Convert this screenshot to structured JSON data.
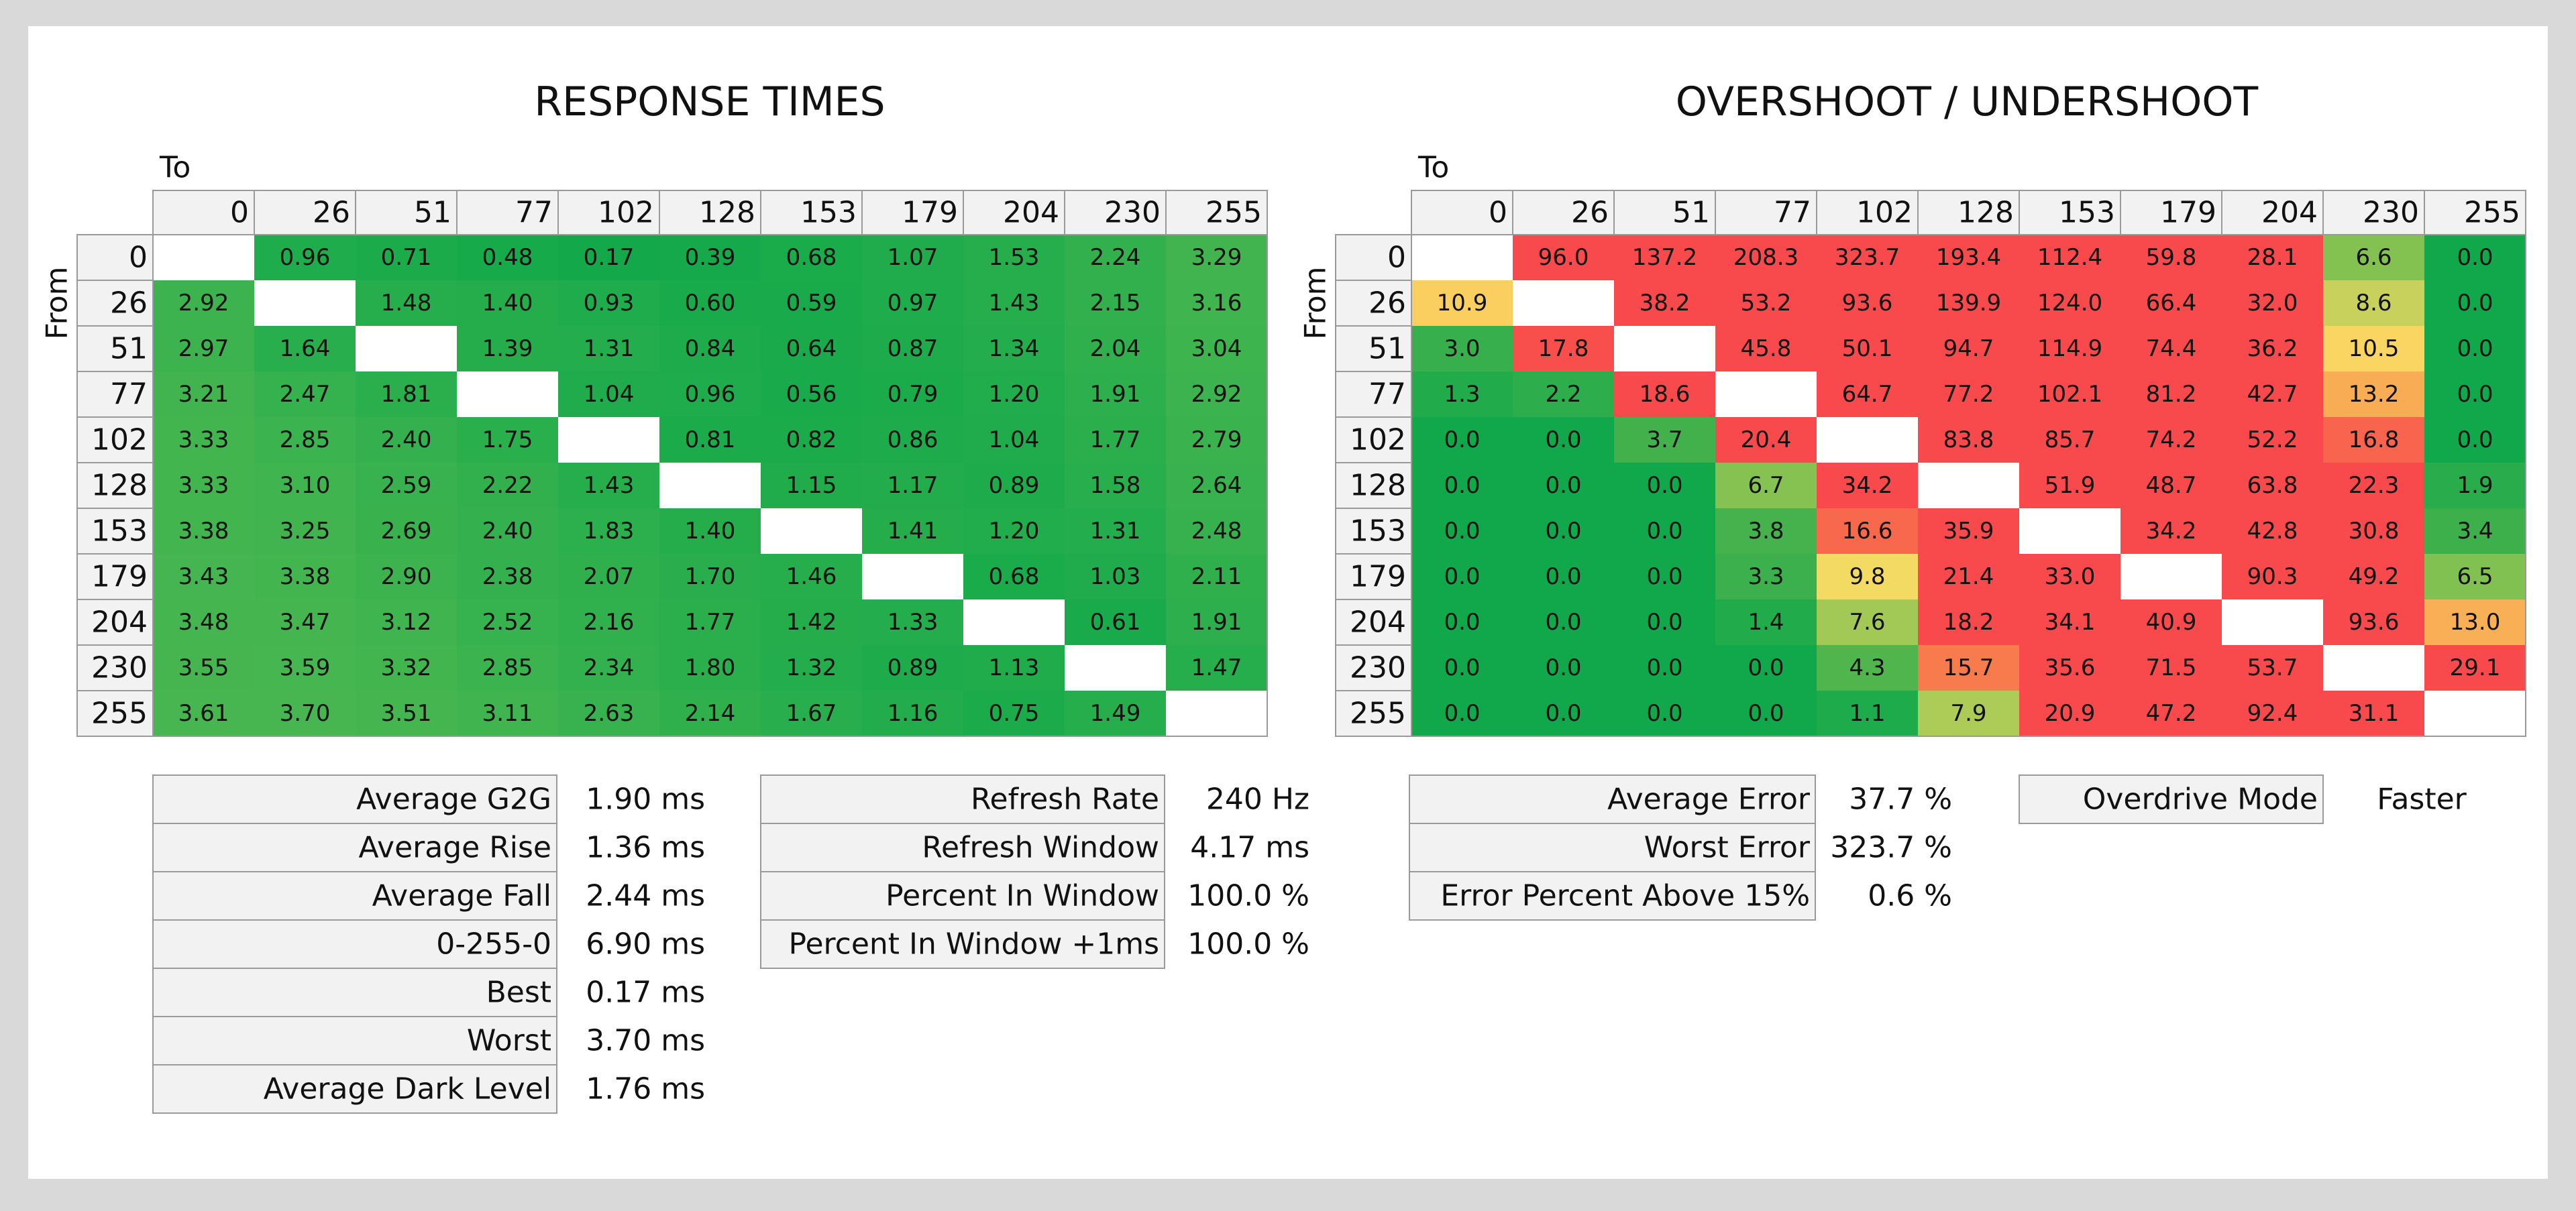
{
  "response_times": {
    "title": "RESPONSE TIMES",
    "to_label": "To",
    "from_label": "From",
    "columns": [
      "0",
      "26",
      "51",
      "77",
      "102",
      "128",
      "153",
      "179",
      "204",
      "230",
      "255"
    ],
    "row_labels": [
      "0",
      "26",
      "51",
      "77",
      "102",
      "128",
      "153",
      "179",
      "204",
      "230",
      "255"
    ],
    "rows": [
      [
        null,
        "0.96",
        "0.71",
        "0.48",
        "0.17",
        "0.39",
        "0.68",
        "1.07",
        "1.53",
        "2.24",
        "3.29"
      ],
      [
        "2.92",
        null,
        "1.48",
        "1.40",
        "0.93",
        "0.60",
        "0.59",
        "0.97",
        "1.43",
        "2.15",
        "3.16"
      ],
      [
        "2.97",
        "1.64",
        null,
        "1.39",
        "1.31",
        "0.84",
        "0.64",
        "0.87",
        "1.34",
        "2.04",
        "3.04"
      ],
      [
        "3.21",
        "2.47",
        "1.81",
        null,
        "1.04",
        "0.96",
        "0.56",
        "0.79",
        "1.20",
        "1.91",
        "2.92"
      ],
      [
        "3.33",
        "2.85",
        "2.40",
        "1.75",
        null,
        "0.81",
        "0.82",
        "0.86",
        "1.04",
        "1.77",
        "2.79"
      ],
      [
        "3.33",
        "3.10",
        "2.59",
        "2.22",
        "1.43",
        null,
        "1.15",
        "1.17",
        "0.89",
        "1.58",
        "2.64"
      ],
      [
        "3.38",
        "3.25",
        "2.69",
        "2.40",
        "1.83",
        "1.40",
        null,
        "1.41",
        "1.20",
        "1.31",
        "2.48"
      ],
      [
        "3.43",
        "3.38",
        "2.90",
        "2.38",
        "2.07",
        "1.70",
        "1.46",
        null,
        "0.68",
        "1.03",
        "2.11"
      ],
      [
        "3.48",
        "3.47",
        "3.12",
        "2.52",
        "2.16",
        "1.77",
        "1.42",
        "1.33",
        null,
        "0.61",
        "1.91"
      ],
      [
        "3.55",
        "3.59",
        "3.32",
        "2.85",
        "2.34",
        "1.80",
        "1.32",
        "0.89",
        "1.13",
        null,
        "1.47"
      ],
      [
        "3.61",
        "3.70",
        "3.51",
        "3.11",
        "2.63",
        "2.14",
        "1.67",
        "1.16",
        "0.75",
        "1.49",
        null
      ]
    ]
  },
  "overshoot": {
    "title": "OVERSHOOT / UNDERSHOOT",
    "to_label": "To",
    "from_label": "From",
    "columns": [
      "0",
      "26",
      "51",
      "77",
      "102",
      "128",
      "153",
      "179",
      "204",
      "230",
      "255"
    ],
    "row_labels": [
      "0",
      "26",
      "51",
      "77",
      "102",
      "128",
      "153",
      "179",
      "204",
      "230",
      "255"
    ],
    "rows": [
      [
        null,
        "96.0",
        "137.2",
        "208.3",
        "323.7",
        "193.4",
        "112.4",
        "59.8",
        "28.1",
        "6.6",
        "0.0"
      ],
      [
        "10.9",
        null,
        "38.2",
        "53.2",
        "93.6",
        "139.9",
        "124.0",
        "66.4",
        "32.0",
        "8.6",
        "0.0"
      ],
      [
        "3.0",
        "17.8",
        null,
        "45.8",
        "50.1",
        "94.7",
        "114.9",
        "74.4",
        "36.2",
        "10.5",
        "0.0"
      ],
      [
        "1.3",
        "2.2",
        "18.6",
        null,
        "64.7",
        "77.2",
        "102.1",
        "81.2",
        "42.7",
        "13.2",
        "0.0"
      ],
      [
        "0.0",
        "0.0",
        "3.7",
        "20.4",
        null,
        "83.8",
        "85.7",
        "74.2",
        "52.2",
        "16.8",
        "0.0"
      ],
      [
        "0.0",
        "0.0",
        "0.0",
        "6.7",
        "34.2",
        null,
        "51.9",
        "48.7",
        "63.8",
        "22.3",
        "1.9"
      ],
      [
        "0.0",
        "0.0",
        "0.0",
        "3.8",
        "16.6",
        "35.9",
        null,
        "34.2",
        "42.8",
        "30.8",
        "3.4"
      ],
      [
        "0.0",
        "0.0",
        "0.0",
        "3.3",
        "9.8",
        "21.4",
        "33.0",
        null,
        "90.3",
        "49.2",
        "6.5"
      ],
      [
        "0.0",
        "0.0",
        "0.0",
        "1.4",
        "7.6",
        "18.2",
        "34.1",
        "40.9",
        null,
        "93.6",
        "13.0"
      ],
      [
        "0.0",
        "0.0",
        "0.0",
        "0.0",
        "4.3",
        "15.7",
        "35.6",
        "71.5",
        "53.7",
        null,
        "29.1"
      ],
      [
        "0.0",
        "0.0",
        "0.0",
        "0.0",
        "1.1",
        "7.9",
        "20.9",
        "47.2",
        "92.4",
        "31.1",
        null
      ]
    ]
  },
  "response_stats": [
    {
      "label": "Average G2G",
      "value": "1.90 ms"
    },
    {
      "label": "Average Rise",
      "value": "1.36 ms"
    },
    {
      "label": "Average Fall",
      "value": "2.44 ms"
    },
    {
      "label": "0-255-0",
      "value": "6.90 ms"
    },
    {
      "label": "Best",
      "value": "0.17 ms"
    },
    {
      "label": "Worst",
      "value": "3.70 ms"
    },
    {
      "label": "Average Dark Level",
      "value": "1.76 ms"
    }
  ],
  "refresh_stats": [
    {
      "label": "Refresh Rate",
      "value": "240 Hz"
    },
    {
      "label": "Refresh Window",
      "value": "4.17 ms"
    },
    {
      "label": "Percent In Window",
      "value": "100.0 %"
    },
    {
      "label": "Percent In Window +1ms",
      "value": "100.0 %"
    }
  ],
  "error_stats": [
    {
      "label": "Average Error",
      "value": "37.7 %"
    },
    {
      "label": "Worst Error",
      "value": "323.7 %"
    },
    {
      "label": "Error Percent Above 15%",
      "value": "0.6 %"
    }
  ],
  "overdrive": {
    "label": "Overdrive Mode",
    "value": "Faster"
  }
}
